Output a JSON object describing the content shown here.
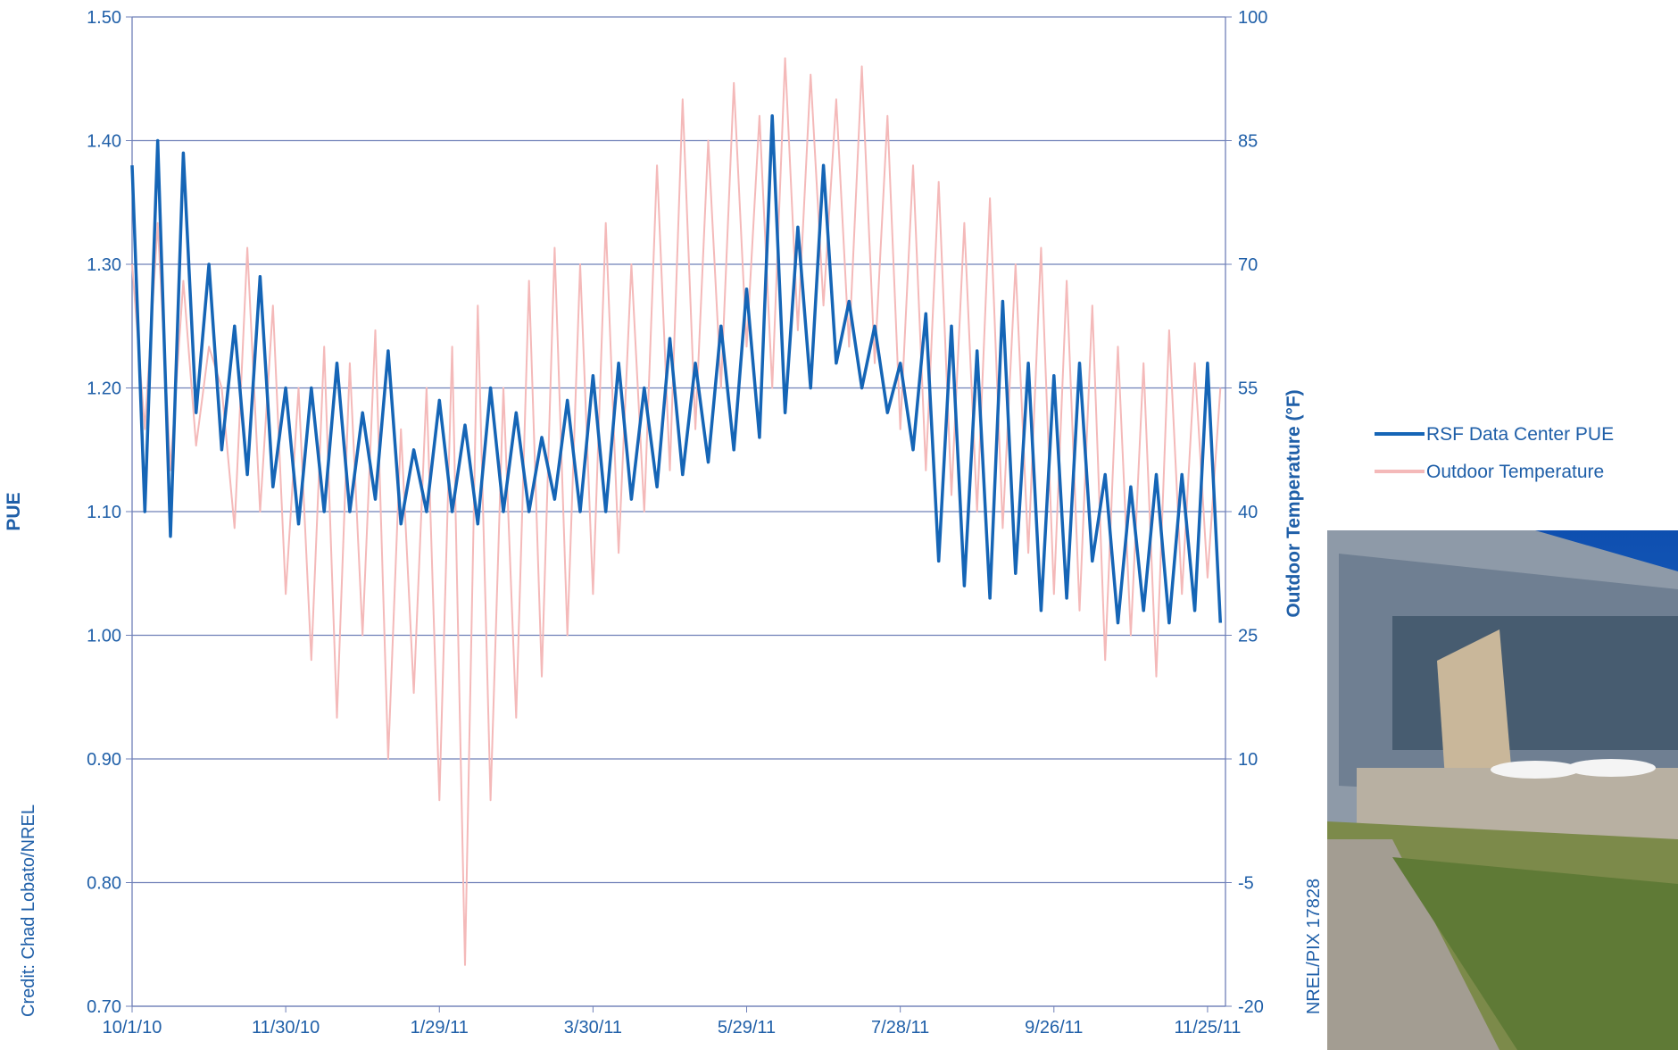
{
  "chart_data": {
    "type": "line",
    "ylabel": "PUE",
    "y2label": "Outdoor Temperature (°F)",
    "credit": "Credit: Chad Lobato/NREL",
    "photo_credit": "NREL/PIX 17828",
    "x": [
      "2010-10-01",
      "2010-10-06",
      "2010-10-11",
      "2010-10-16",
      "2010-10-21",
      "2010-10-26",
      "2010-10-31",
      "2010-11-05",
      "2010-11-10",
      "2010-11-15",
      "2010-11-20",
      "2010-11-25",
      "2010-11-30",
      "2010-12-05",
      "2010-12-10",
      "2010-12-15",
      "2010-12-20",
      "2010-12-25",
      "2010-12-30",
      "2011-01-04",
      "2011-01-09",
      "2011-01-14",
      "2011-01-19",
      "2011-01-24",
      "2011-01-29",
      "2011-02-03",
      "2011-02-08",
      "2011-02-13",
      "2011-02-18",
      "2011-02-23",
      "2011-02-28",
      "2011-03-05",
      "2011-03-10",
      "2011-03-15",
      "2011-03-20",
      "2011-03-25",
      "2011-03-30",
      "2011-04-04",
      "2011-04-09",
      "2011-04-14",
      "2011-04-19",
      "2011-04-24",
      "2011-04-29",
      "2011-05-04",
      "2011-05-09",
      "2011-05-14",
      "2011-05-19",
      "2011-05-24",
      "2011-05-29",
      "2011-06-03",
      "2011-06-08",
      "2011-06-13",
      "2011-06-18",
      "2011-06-23",
      "2011-06-28",
      "2011-07-03",
      "2011-07-08",
      "2011-07-13",
      "2011-07-18",
      "2011-07-23",
      "2011-07-28",
      "2011-08-02",
      "2011-08-07",
      "2011-08-12",
      "2011-08-17",
      "2011-08-22",
      "2011-08-27",
      "2011-09-01",
      "2011-09-06",
      "2011-09-11",
      "2011-09-16",
      "2011-09-21",
      "2011-09-26",
      "2011-10-01",
      "2011-10-06",
      "2011-10-11",
      "2011-10-16",
      "2011-10-21",
      "2011-10-26",
      "2011-10-31",
      "2011-11-05",
      "2011-11-10",
      "2011-11-15",
      "2011-11-20",
      "2011-11-25",
      "2011-11-30"
    ],
    "series": [
      {
        "name": "RSF Data Center PUE",
        "color": "#1565b6",
        "axis": "y",
        "values": [
          1.38,
          1.1,
          1.4,
          1.08,
          1.39,
          1.18,
          1.3,
          1.15,
          1.25,
          1.13,
          1.29,
          1.12,
          1.2,
          1.09,
          1.2,
          1.1,
          1.22,
          1.1,
          1.18,
          1.11,
          1.23,
          1.09,
          1.15,
          1.1,
          1.19,
          1.1,
          1.17,
          1.09,
          1.2,
          1.1,
          1.18,
          1.1,
          1.16,
          1.11,
          1.19,
          1.1,
          1.21,
          1.1,
          1.22,
          1.11,
          1.2,
          1.12,
          1.24,
          1.13,
          1.22,
          1.14,
          1.25,
          1.15,
          1.28,
          1.16,
          1.42,
          1.18,
          1.33,
          1.2,
          1.38,
          1.22,
          1.27,
          1.2,
          1.25,
          1.18,
          1.22,
          1.15,
          1.26,
          1.06,
          1.25,
          1.04,
          1.23,
          1.03,
          1.27,
          1.05,
          1.22,
          1.02,
          1.21,
          1.03,
          1.22,
          1.06,
          1.13,
          1.01,
          1.12,
          1.02,
          1.13,
          1.01,
          1.13,
          1.02,
          1.22,
          1.01
        ]
      },
      {
        "name": "Outdoor Temperature",
        "color": "#f4b9b9",
        "axis": "y2",
        "values": [
          70,
          50,
          75,
          45,
          68,
          48,
          60,
          55,
          38,
          72,
          40,
          65,
          30,
          55,
          22,
          60,
          15,
          58,
          25,
          62,
          10,
          50,
          18,
          55,
          5,
          60,
          -15,
          65,
          5,
          55,
          15,
          68,
          20,
          72,
          25,
          70,
          30,
          75,
          35,
          70,
          40,
          82,
          45,
          90,
          50,
          85,
          55,
          92,
          60,
          88,
          55,
          95,
          62,
          93,
          65,
          90,
          60,
          94,
          58,
          88,
          50,
          82,
          45,
          80,
          42,
          75,
          40,
          78,
          38,
          70,
          35,
          72,
          30,
          68,
          28,
          65,
          22,
          60,
          25,
          58,
          20,
          62,
          30,
          58,
          32,
          55
        ]
      }
    ],
    "xlim": [
      "2010-10-01",
      "2011-12-02"
    ],
    "xticks": [
      {
        "value": "2010-10-01",
        "label": "10/1/10"
      },
      {
        "value": "2010-11-30",
        "label": "11/30/10"
      },
      {
        "value": "2011-01-29",
        "label": "1/29/11"
      },
      {
        "value": "2011-03-30",
        "label": "3/30/11"
      },
      {
        "value": "2011-05-29",
        "label": "5/29/11"
      },
      {
        "value": "2011-07-28",
        "label": "7/28/11"
      },
      {
        "value": "2011-09-26",
        "label": "9/26/11"
      },
      {
        "value": "2011-11-25",
        "label": "11/25/11"
      }
    ],
    "ylim": [
      0.7,
      1.5
    ],
    "yticks": [
      {
        "value": 0.7,
        "label": "0.70"
      },
      {
        "value": 0.8,
        "label": "0.80"
      },
      {
        "value": 0.9,
        "label": "0.90"
      },
      {
        "value": 1.0,
        "label": "1.00"
      },
      {
        "value": 1.1,
        "label": "1.10"
      },
      {
        "value": 1.2,
        "label": "1.20"
      },
      {
        "value": 1.3,
        "label": "1.30"
      },
      {
        "value": 1.4,
        "label": "1.40"
      },
      {
        "value": 1.5,
        "label": "1.50"
      }
    ],
    "y2lim": [
      -20,
      100
    ],
    "y2ticks": [
      -20,
      -5,
      10,
      25,
      40,
      55,
      70,
      85,
      100
    ],
    "grid": true
  }
}
